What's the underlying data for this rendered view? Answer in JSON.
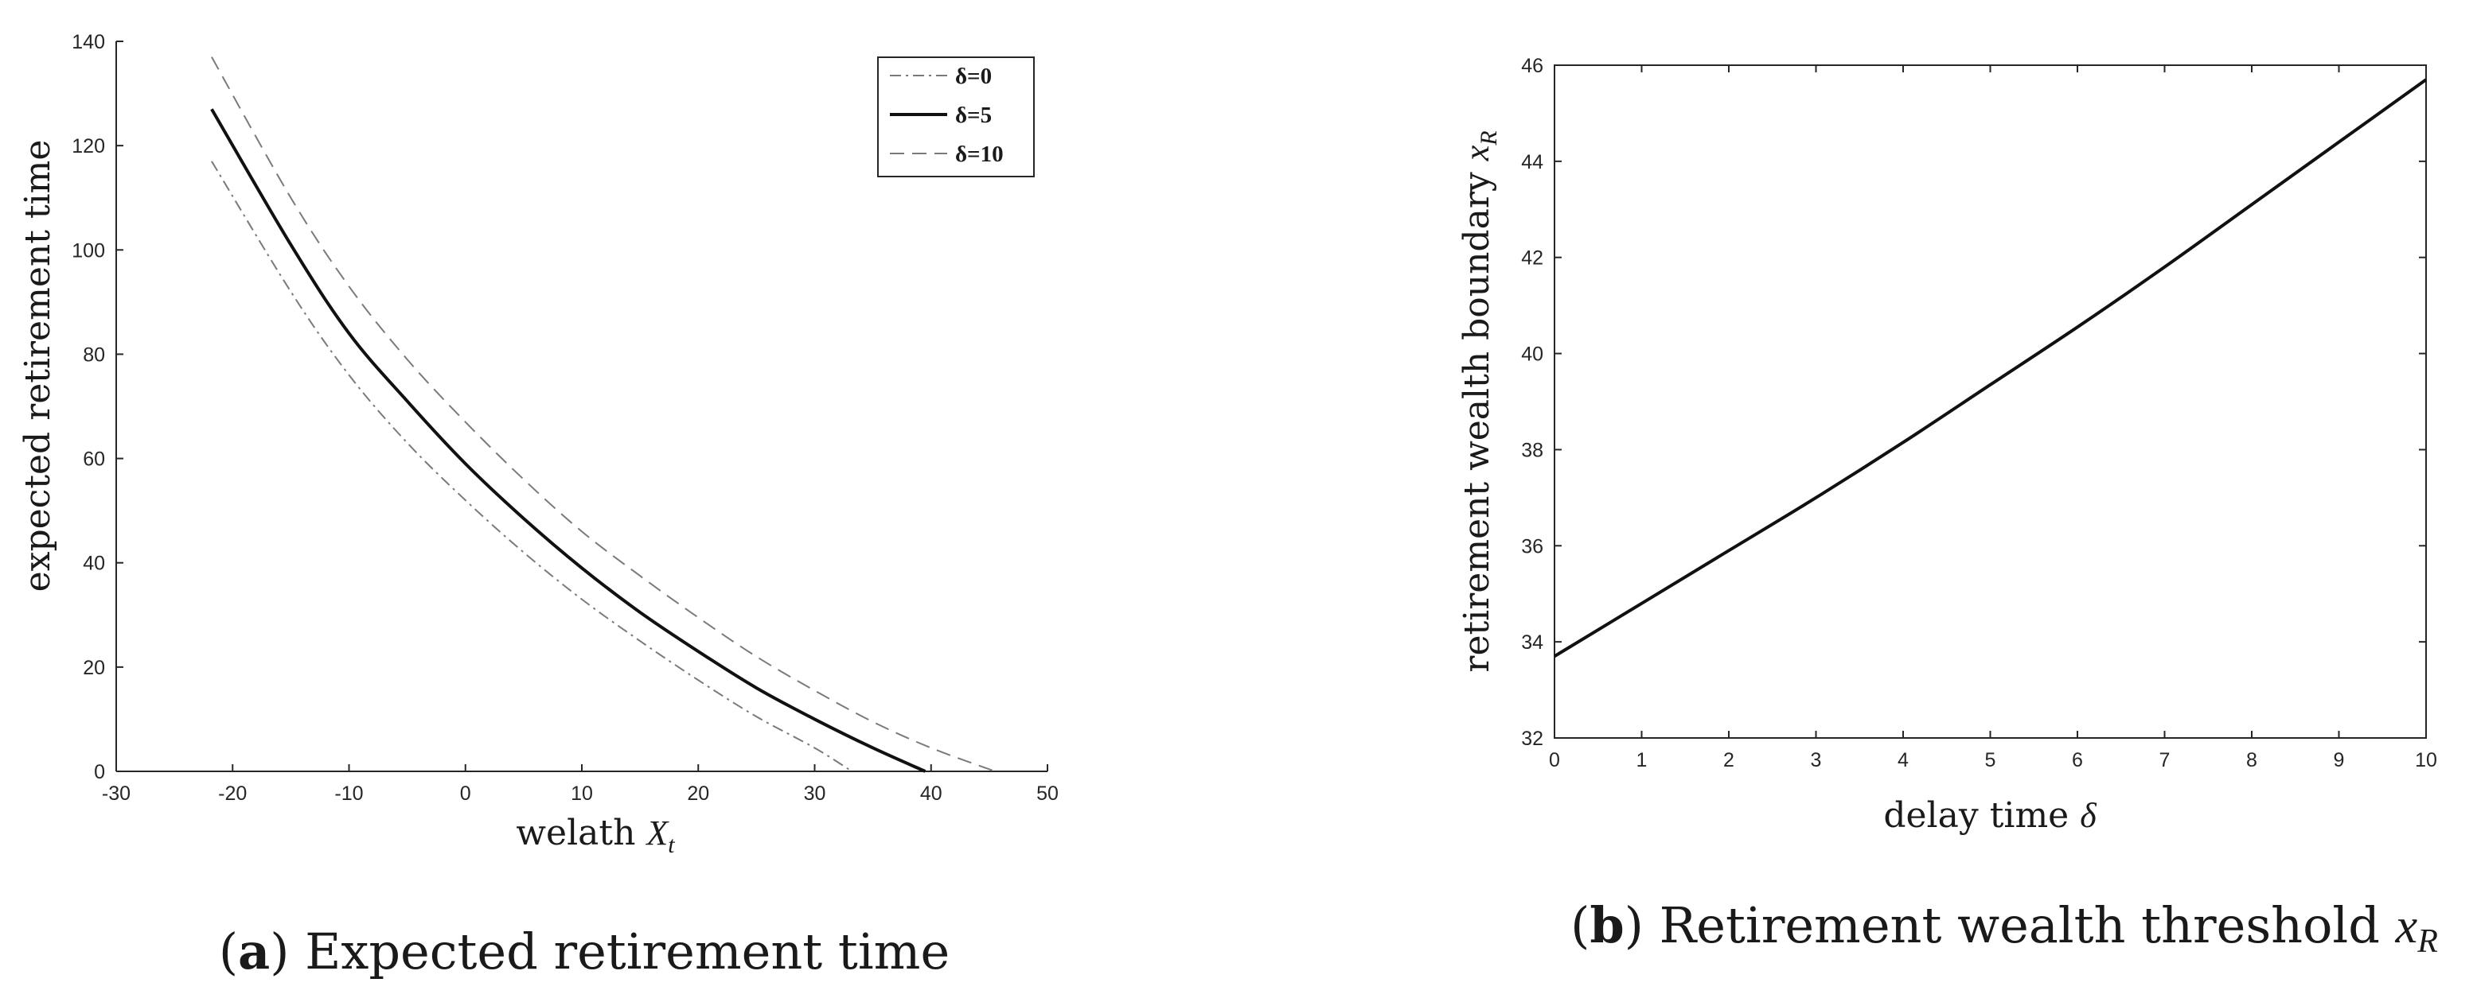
{
  "chart_data": [
    {
      "type": "line",
      "panel_tag": "a",
      "caption": "Expected retirement time",
      "xlabel_text": "welath ",
      "xlabel_math": "X",
      "xlabel_sub": "t",
      "ylabel": "expected retirement time",
      "xlim": [
        -30,
        50
      ],
      "ylim": [
        0,
        140
      ],
      "xticks": [
        "-30",
        "-20",
        "-10",
        "0",
        "10",
        "20",
        "30",
        "40",
        "50"
      ],
      "yticks": [
        "0",
        "20",
        "40",
        "60",
        "80",
        "100",
        "120",
        "140"
      ],
      "legend_position": "top-right",
      "series": [
        {
          "name": "δ=0",
          "style": "dashdot",
          "x": [
            -21.8,
            -15,
            -10,
            -5,
            0,
            5,
            10,
            15,
            20,
            25,
            30,
            33.2
          ],
          "y": [
            117,
            92,
            76,
            63,
            52,
            42,
            33,
            25,
            17.5,
            10.5,
            4.5,
            0
          ]
        },
        {
          "name": "δ=5",
          "style": "solid",
          "x": [
            -21.8,
            -15,
            -10,
            -5,
            0,
            5,
            10,
            15,
            20,
            25,
            30,
            35,
            39.5
          ],
          "y": [
            127,
            101,
            84,
            71,
            59,
            48.5,
            39,
            30.5,
            23,
            16,
            10,
            4.5,
            0
          ]
        },
        {
          "name": "δ=10",
          "style": "dashed",
          "x": [
            -21.8,
            -15,
            -10,
            -5,
            0,
            5,
            10,
            15,
            20,
            25,
            30,
            35,
            40,
            45.5
          ],
          "y": [
            137,
            110,
            93,
            79,
            67,
            56,
            46,
            37.5,
            29.5,
            22,
            15.5,
            9.5,
            4.5,
            0
          ]
        }
      ]
    },
    {
      "type": "line",
      "panel_tag": "b",
      "caption": "Retirement wealth threshold ",
      "caption_math": "x",
      "caption_sub": "R",
      "xlabel_text": "delay time ",
      "xlabel_math": "δ",
      "ylabel_text": "retirement wealth boundary ",
      "ylabel_math": "x",
      "ylabel_sub": "R",
      "xlim": [
        0,
        10
      ],
      "ylim": [
        32,
        46
      ],
      "xticks": [
        "0",
        "1",
        "2",
        "3",
        "4",
        "5",
        "6",
        "7",
        "8",
        "9",
        "10"
      ],
      "yticks": [
        "32",
        "34",
        "36",
        "38",
        "40",
        "42",
        "44",
        "46"
      ],
      "series": [
        {
          "style": "solid",
          "x": [
            0,
            1,
            2,
            3,
            4,
            5,
            6,
            7,
            8,
            9,
            10
          ],
          "y": [
            33.7,
            34.8,
            35.9,
            37.0,
            38.15,
            39.35,
            40.55,
            41.8,
            43.1,
            44.4,
            45.7
          ]
        }
      ]
    }
  ]
}
